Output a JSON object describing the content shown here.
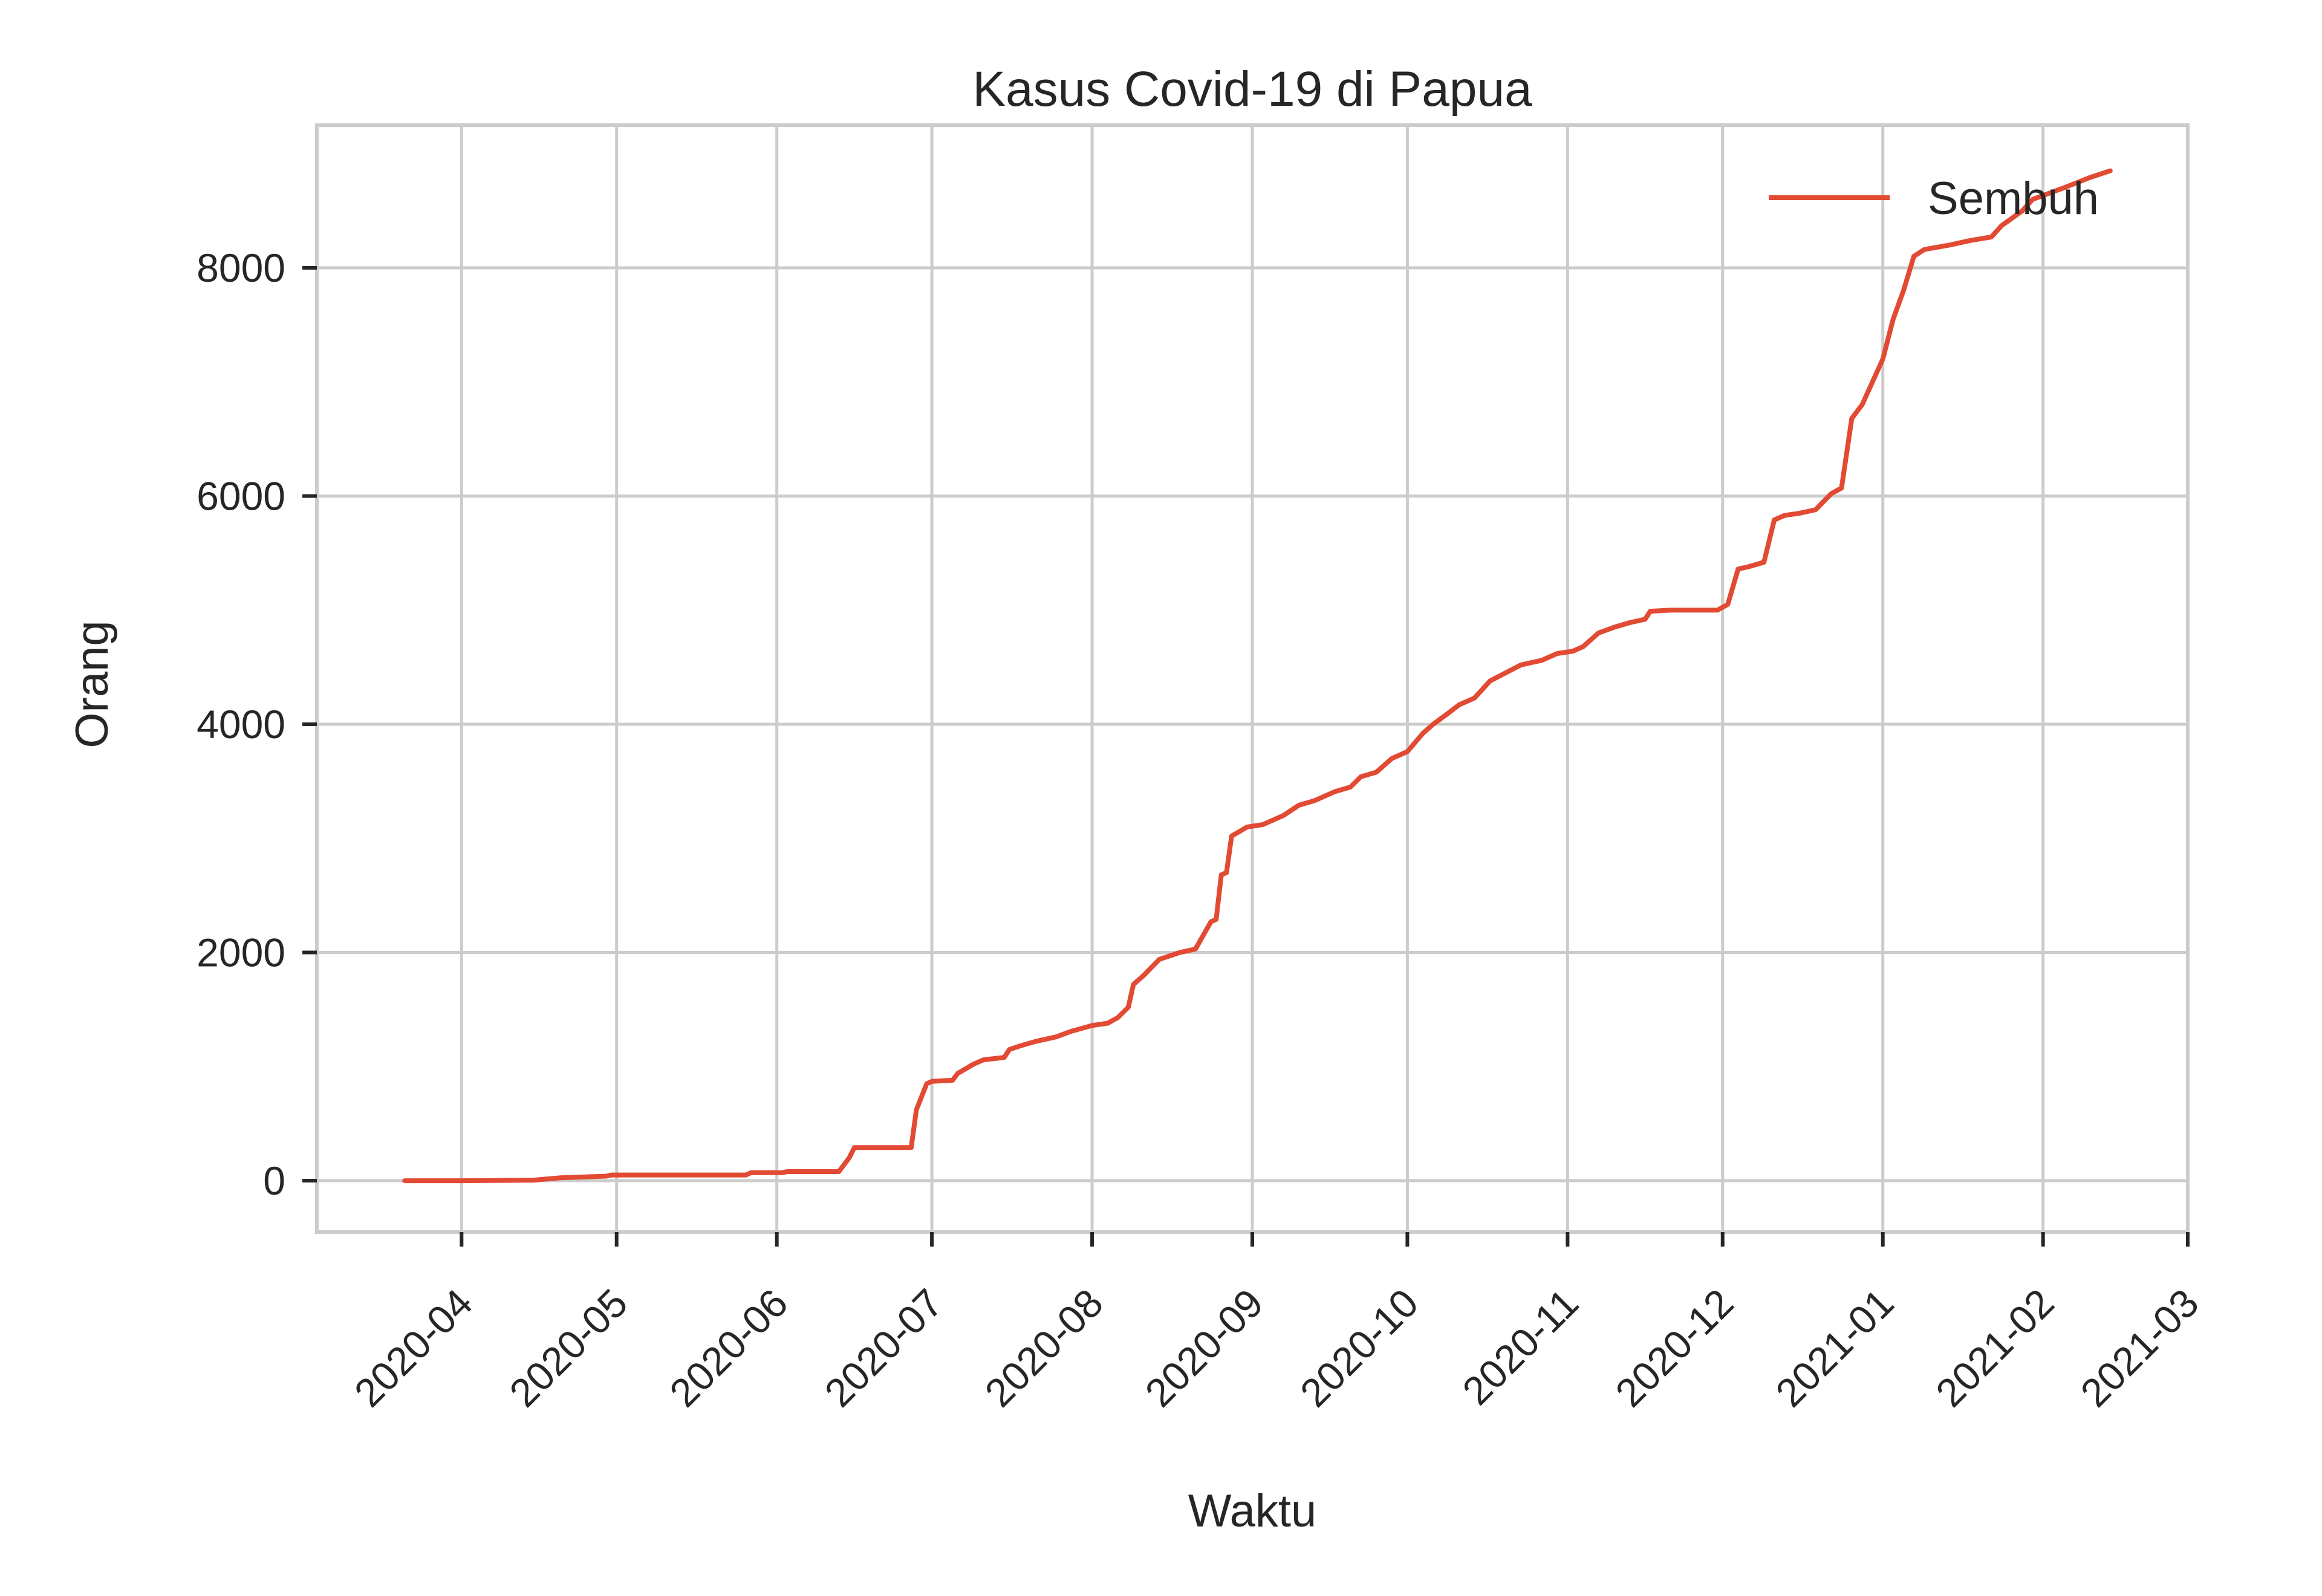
{
  "chart_data": {
    "type": "line",
    "title": "Kasus Covid-19 di Papua",
    "xlabel": "Waktu",
    "ylabel": "Orang",
    "grid": true,
    "legend_position": "top-right",
    "x_ticks": [
      "2020-04",
      "2020-05",
      "2020-06",
      "2020-07",
      "2020-08",
      "2020-09",
      "2020-10",
      "2020-11",
      "2020-12",
      "2021-01",
      "2021-02",
      "2021-03"
    ],
    "y_ticks": [
      "0",
      "2000",
      "4000",
      "6000",
      "8000"
    ],
    "ylim": [
      -450,
      9250
    ],
    "xlim": [
      "2020-03-04",
      "2021-03-01"
    ],
    "colors": {
      "series": "#e24a33",
      "grid": "#cccccc",
      "text": "#262626"
    },
    "series": [
      {
        "name": "Sembuh",
        "points": [
          [
            "2020-03-21",
            0
          ],
          [
            "2020-04-01",
            0
          ],
          [
            "2020-04-15",
            5
          ],
          [
            "2020-04-20",
            25
          ],
          [
            "2020-04-29",
            40
          ],
          [
            "2020-04-30",
            50
          ],
          [
            "2020-05-15",
            50
          ],
          [
            "2020-05-26",
            50
          ],
          [
            "2020-05-27",
            70
          ],
          [
            "2020-06-02",
            70
          ],
          [
            "2020-06-03",
            80
          ],
          [
            "2020-06-13",
            80
          ],
          [
            "2020-06-15",
            200
          ],
          [
            "2020-06-16",
            290
          ],
          [
            "2020-06-27",
            290
          ],
          [
            "2020-06-28",
            620
          ],
          [
            "2020-06-30",
            850
          ],
          [
            "2020-07-01",
            870
          ],
          [
            "2020-07-05",
            880
          ],
          [
            "2020-07-06",
            940
          ],
          [
            "2020-07-09",
            1020
          ],
          [
            "2020-07-11",
            1060
          ],
          [
            "2020-07-15",
            1080
          ],
          [
            "2020-07-16",
            1150
          ],
          [
            "2020-07-18",
            1180
          ],
          [
            "2020-07-21",
            1220
          ],
          [
            "2020-07-25",
            1260
          ],
          [
            "2020-07-28",
            1310
          ],
          [
            "2020-08-01",
            1360
          ],
          [
            "2020-08-04",
            1380
          ],
          [
            "2020-08-06",
            1430
          ],
          [
            "2020-08-08",
            1520
          ],
          [
            "2020-08-09",
            1720
          ],
          [
            "2020-08-11",
            1800
          ],
          [
            "2020-08-14",
            1940
          ],
          [
            "2020-08-18",
            2000
          ],
          [
            "2020-08-21",
            2030
          ],
          [
            "2020-08-24",
            2270
          ],
          [
            "2020-08-25",
            2290
          ],
          [
            "2020-08-26",
            2680
          ],
          [
            "2020-08-27",
            2700
          ],
          [
            "2020-08-28",
            3020
          ],
          [
            "2020-08-31",
            3100
          ],
          [
            "2020-09-03",
            3120
          ],
          [
            "2020-09-07",
            3200
          ],
          [
            "2020-09-10",
            3290
          ],
          [
            "2020-09-13",
            3330
          ],
          [
            "2020-09-17",
            3410
          ],
          [
            "2020-09-20",
            3450
          ],
          [
            "2020-09-22",
            3540
          ],
          [
            "2020-09-25",
            3580
          ],
          [
            "2020-09-28",
            3700
          ],
          [
            "2020-10-01",
            3760
          ],
          [
            "2020-10-04",
            3920
          ],
          [
            "2020-10-06",
            4000
          ],
          [
            "2020-10-09",
            4100
          ],
          [
            "2020-10-11",
            4170
          ],
          [
            "2020-10-14",
            4230
          ],
          [
            "2020-10-17",
            4380
          ],
          [
            "2020-10-20",
            4450
          ],
          [
            "2020-10-23",
            4520
          ],
          [
            "2020-10-27",
            4560
          ],
          [
            "2020-10-30",
            4620
          ],
          [
            "2020-11-02",
            4640
          ],
          [
            "2020-11-04",
            4680
          ],
          [
            "2020-11-07",
            4800
          ],
          [
            "2020-11-10",
            4850
          ],
          [
            "2020-11-13",
            4890
          ],
          [
            "2020-11-16",
            4920
          ],
          [
            "2020-11-17",
            4990
          ],
          [
            "2020-11-21",
            5000
          ],
          [
            "2020-11-30",
            5000
          ],
          [
            "2020-12-02",
            5050
          ],
          [
            "2020-12-04",
            5360
          ],
          [
            "2020-12-06",
            5380
          ],
          [
            "2020-12-09",
            5420
          ],
          [
            "2020-12-11",
            5790
          ],
          [
            "2020-12-13",
            5830
          ],
          [
            "2020-12-16",
            5850
          ],
          [
            "2020-12-19",
            5880
          ],
          [
            "2020-12-22",
            6020
          ],
          [
            "2020-12-24",
            6070
          ],
          [
            "2020-12-26",
            6680
          ],
          [
            "2020-12-28",
            6800
          ],
          [
            "2020-12-30",
            7000
          ],
          [
            "2021-01-01",
            7200
          ],
          [
            "2021-01-03",
            7550
          ],
          [
            "2021-01-05",
            7800
          ],
          [
            "2021-01-07",
            8100
          ],
          [
            "2021-01-09",
            8160
          ],
          [
            "2021-01-14",
            8200
          ],
          [
            "2021-01-18",
            8240
          ],
          [
            "2021-01-22",
            8270
          ],
          [
            "2021-01-24",
            8370
          ],
          [
            "2021-01-28",
            8500
          ],
          [
            "2021-01-30",
            8600
          ],
          [
            "2021-02-05",
            8700
          ],
          [
            "2021-02-10",
            8790
          ],
          [
            "2021-02-14",
            8850
          ]
        ]
      }
    ]
  }
}
